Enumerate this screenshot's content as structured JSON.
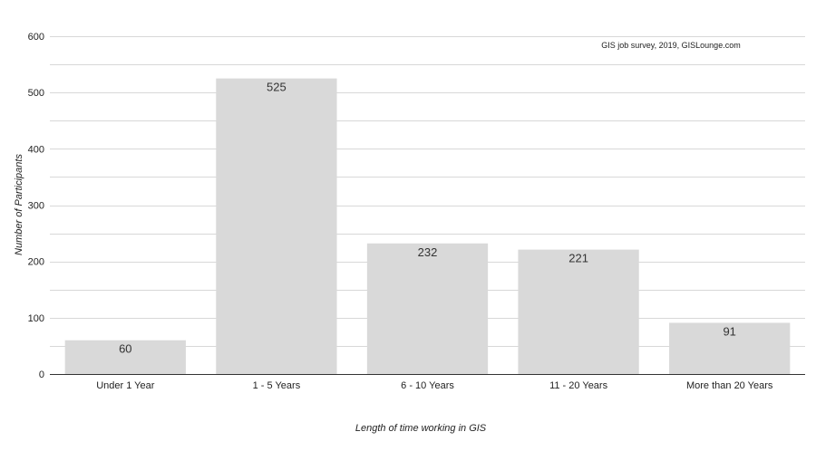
{
  "chart_data": {
    "type": "bar",
    "categories": [
      "Under 1 Year",
      "1 - 5 Years",
      "6 - 10 Years",
      "11 - 20 Years",
      "More than 20 Years"
    ],
    "values": [
      60,
      525,
      232,
      221,
      91
    ],
    "data_labels": [
      "60",
      "525",
      "232",
      "221",
      "91"
    ],
    "title": "",
    "annotation": "GIS job survey, 2019, GISLounge.com",
    "xlabel": "Length of time working in GIS",
    "ylabel": "Number of Participants",
    "ylim": [
      0,
      600
    ],
    "yticks": [
      0,
      100,
      200,
      300,
      400,
      500,
      600
    ],
    "grid": true,
    "bar_color": "#d9d9d9",
    "gridline_color": "#d8d8d8",
    "axis_color": "#333333"
  }
}
